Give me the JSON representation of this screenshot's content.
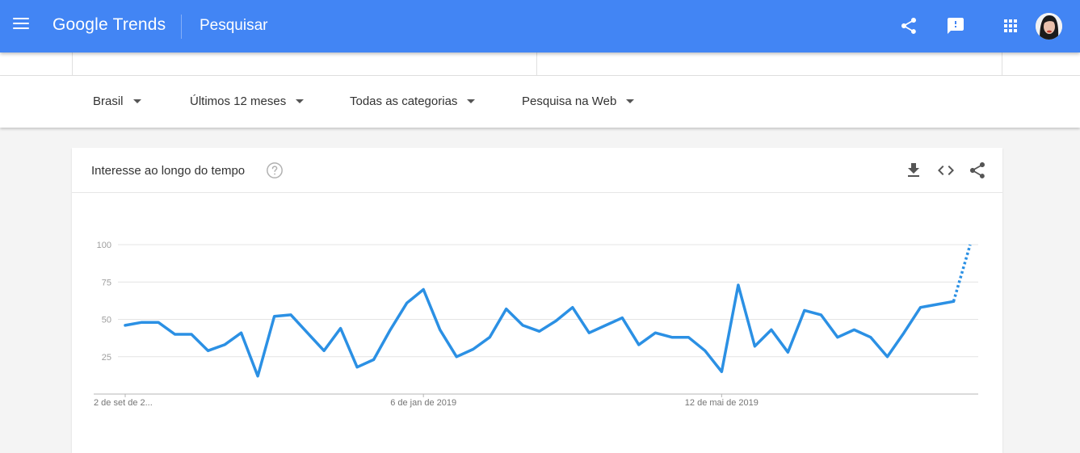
{
  "header": {
    "logo_google": "Google",
    "logo_trends": "Trends",
    "title": "Pesquisar",
    "icons": [
      "menu-icon",
      "share-icon",
      "feedback-icon",
      "apps-icon",
      "account-avatar"
    ],
    "color": "#4285f4"
  },
  "filters": {
    "region": "Brasil",
    "period": "Últimos 12 meses",
    "category": "Todas as categorias",
    "search_type": "Pesquisa na Web"
  },
  "card": {
    "title": "Interesse ao longo do tempo",
    "icons": [
      "help-icon",
      "download-icon",
      "embed-icon",
      "share-icon"
    ]
  },
  "chart_data": {
    "type": "line",
    "x_labels": [
      "2 de set de 2...",
      "6 de jan de 2019",
      "12 de mai de 2019"
    ],
    "x_label_index": [
      0,
      18,
      36
    ],
    "y_ticks": [
      25,
      50,
      75,
      100
    ],
    "ylim": [
      0,
      100
    ],
    "grid": true,
    "line_color": "#2b90e4",
    "partial_from_index": 50,
    "values": [
      46,
      48,
      48,
      40,
      40,
      29,
      33,
      41,
      12,
      52,
      53,
      41,
      29,
      44,
      18,
      23,
      43,
      61,
      70,
      43,
      25,
      30,
      38,
      57,
      46,
      42,
      49,
      58,
      41,
      46,
      51,
      33,
      41,
      38,
      38,
      29,
      15,
      73,
      32,
      43,
      28,
      56,
      53,
      38,
      43,
      38,
      25,
      41,
      58,
      60,
      62,
      100
    ]
  }
}
